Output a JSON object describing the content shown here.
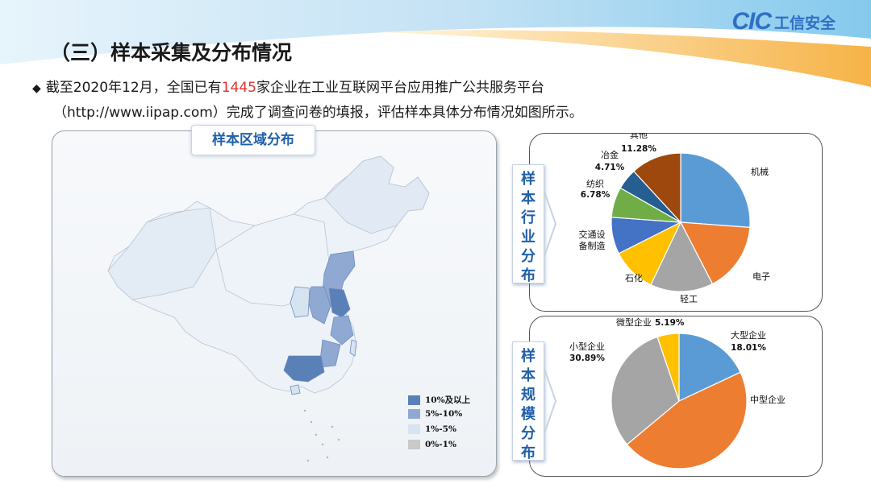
{
  "header": {
    "logo": "CIC 工信安全",
    "logo_mark": "CIC",
    "logo_text": "工信安全"
  },
  "title": "（三）样本采集及分布情况",
  "intro": {
    "before": "截至2020年12月，全国已有",
    "highlight": "1445",
    "after": "家企业在工业互联网平台应用推广公共服务平台",
    "line2": "（http://www.iipap.com）完成了调查问卷的填报，评估样本具体分布情况如图所示。"
  },
  "colors": {
    "accent": "#1f5fa8",
    "highlight_red": "#e0312f"
  },
  "chart_data": [
    {
      "type": "map",
      "title": "样本区域分布",
      "legend": [
        {
          "label": "10%及以上",
          "color": "#5a80b8"
        },
        {
          "label": "5%-10%",
          "color": "#8fa9d2"
        },
        {
          "label": "1%-5%",
          "color": "#d6e3f1"
        },
        {
          "label": "0%-1%",
          "color": "#c9c9c9"
        }
      ]
    },
    {
      "type": "pie",
      "title": "样本行业分布",
      "labels": [
        "机械",
        "电子",
        "轻工",
        "石化",
        "交通设备制造",
        "纺织",
        "冶金",
        "其他"
      ],
      "values": [
        25.0,
        15.5,
        14.0,
        10.0,
        8.2,
        6.78,
        4.71,
        11.28
      ],
      "value_labels": [
        "",
        "",
        "",
        "",
        "",
        "6.78%",
        "4.71%",
        "11.28%"
      ],
      "colors": [
        "#5b9bd5",
        "#ed7d31",
        "#a5a5a5",
        "#ffc000",
        "#4472c4",
        "#70ad47",
        "#255e91",
        "#9e480e"
      ]
    },
    {
      "type": "pie",
      "title": "样本规模分布",
      "labels": [
        "大型企业",
        "中型企业",
        "小型企业",
        "微型企业"
      ],
      "values": [
        18.01,
        45.91,
        30.89,
        5.19
      ],
      "value_labels": [
        "18.01%",
        "",
        "30.89%",
        "5.19%"
      ],
      "colors": [
        "#5b9bd5",
        "#ed7d31",
        "#a5a5a5",
        "#ffc000"
      ]
    }
  ]
}
